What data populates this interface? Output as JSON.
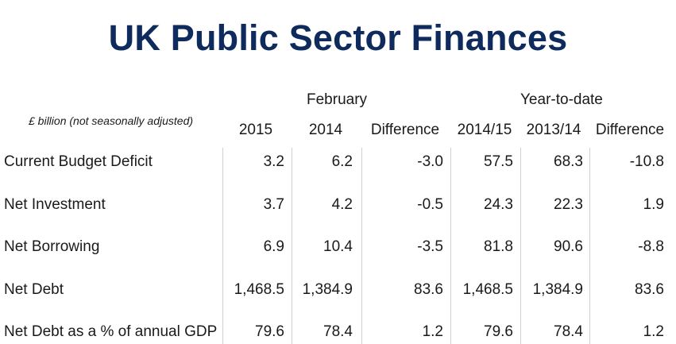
{
  "title": "UK Public Sector Finances",
  "chart_data": {
    "type": "table",
    "title": "UK Public Sector Finances",
    "units_note": "£ billion (not seasonally adjusted)",
    "groups": [
      "February",
      "Year-to-date"
    ],
    "columns": [
      "2015",
      "2014",
      "Difference",
      "2014/15",
      "2013/14",
      "Difference"
    ],
    "rows": [
      {
        "label": "Current Budget Deficit",
        "values": [
          "3.2",
          "6.2",
          "-3.0",
          "57.5",
          "68.3",
          "-10.8"
        ]
      },
      {
        "label": "Net Investment",
        "values": [
          "3.7",
          "4.2",
          "-0.5",
          "24.3",
          "22.3",
          "1.9"
        ]
      },
      {
        "label": "Net Borrowing",
        "values": [
          "6.9",
          "10.4",
          "-3.5",
          "81.8",
          "90.6",
          "-8.8"
        ]
      },
      {
        "label": "Net Debt",
        "values": [
          "1,468.5",
          "1,384.9",
          "83.6",
          "1,468.5",
          "1,384.9",
          "83.6"
        ]
      },
      {
        "label": "Net Debt as a % of annual GDP",
        "values": [
          "79.6",
          "78.4",
          "1.2",
          "79.6",
          "78.4",
          "1.2"
        ]
      }
    ]
  }
}
